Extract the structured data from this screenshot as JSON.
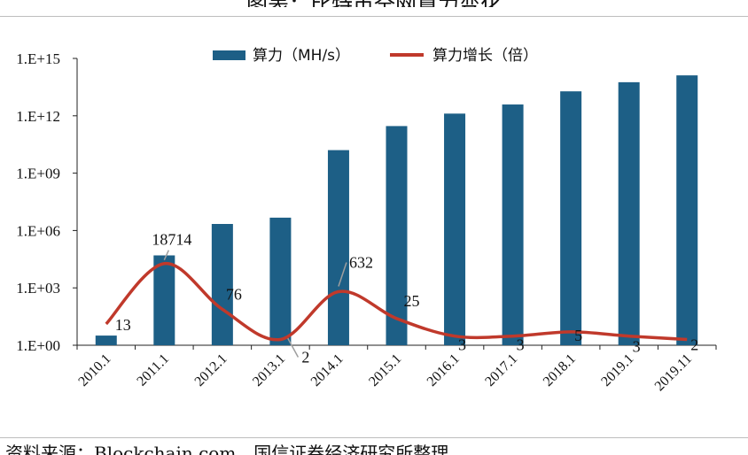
{
  "header": {
    "title": "图表：比特币全网算力变化",
    "source": "资料来源：Blockchain.com，国信证券经济研究所整理"
  },
  "chart_data": {
    "type": "bar",
    "categories": [
      "2010.1",
      "2011.1",
      "2012.1",
      "2013.1",
      "2014.1",
      "2015.1",
      "2016.1",
      "2017.1",
      "2018.1",
      "2019.1",
      "2019.11"
    ],
    "series": [
      {
        "name": "算力（MH/s）",
        "type": "bar",
        "axis": "log",
        "color": "#1d5f86",
        "values": [
          3.2,
          50000.0,
          2200000.0,
          4700000.0,
          16000000000.0,
          290000000000.0,
          1300000000000.0,
          3900000000000.0,
          19000000000000.0,
          57000000000000.0,
          130000000000000.0
        ]
      },
      {
        "name": "算力增长（倍）",
        "type": "line",
        "smooth": true,
        "color": "#c0392b",
        "values": [
          13,
          18714,
          76,
          2,
          632,
          25,
          3,
          3,
          5,
          3,
          2
        ],
        "data_labels": [
          "13",
          "18714",
          "76",
          "2",
          "632",
          "25",
          "3",
          "3",
          "5",
          "3",
          "2"
        ]
      }
    ],
    "y_axis": {
      "scale": "log",
      "ylim": [
        1,
        1000000000000000.0
      ],
      "tick_labels": [
        "1.E+00",
        "1.E+03",
        "1.E+06",
        "1.E+09",
        "1.E+12",
        "1.E+15"
      ]
    },
    "grid": false,
    "legend": "top"
  }
}
